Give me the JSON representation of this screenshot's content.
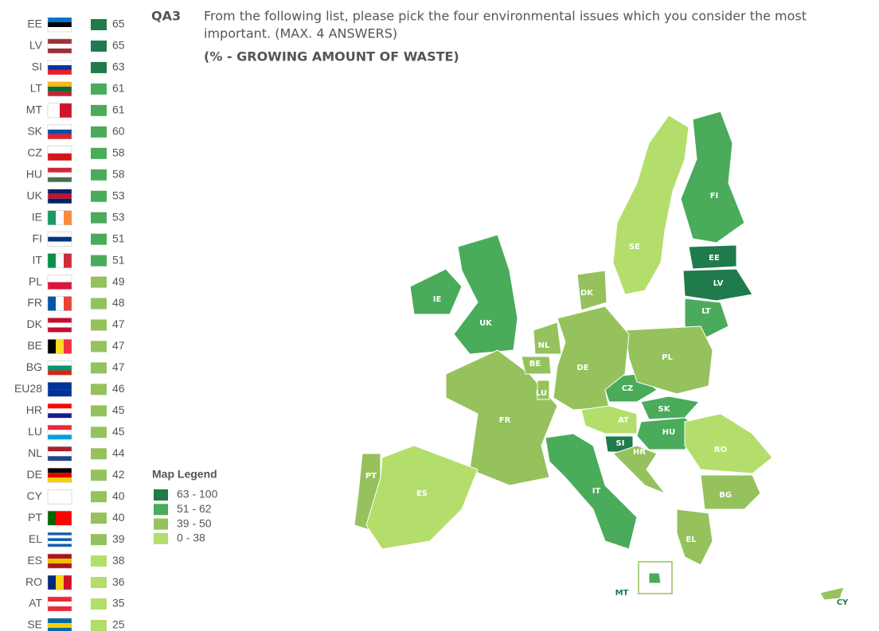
{
  "question": {
    "code": "QA3",
    "text_line1": "From the following list, please pick the four environmental issues which you consider the most",
    "text_line2": "important. (MAX. 4 ANSWERS)",
    "subtitle": "(% - GROWING AMOUNT OF WASTE)"
  },
  "countries": [
    {
      "code": "EE",
      "value": 65
    },
    {
      "code": "LV",
      "value": 65
    },
    {
      "code": "SI",
      "value": 63
    },
    {
      "code": "LT",
      "value": 61
    },
    {
      "code": "MT",
      "value": 61
    },
    {
      "code": "SK",
      "value": 60
    },
    {
      "code": "CZ",
      "value": 58
    },
    {
      "code": "HU",
      "value": 58
    },
    {
      "code": "UK",
      "value": 53
    },
    {
      "code": "IE",
      "value": 53
    },
    {
      "code": "FI",
      "value": 51
    },
    {
      "code": "IT",
      "value": 51
    },
    {
      "code": "PL",
      "value": 49
    },
    {
      "code": "FR",
      "value": 48
    },
    {
      "code": "DK",
      "value": 47
    },
    {
      "code": "BE",
      "value": 47
    },
    {
      "code": "BG",
      "value": 47
    },
    {
      "code": "EU28",
      "value": 46
    },
    {
      "code": "HR",
      "value": 45
    },
    {
      "code": "LU",
      "value": 45
    },
    {
      "code": "NL",
      "value": 44
    },
    {
      "code": "DE",
      "value": 42
    },
    {
      "code": "CY",
      "value": 40
    },
    {
      "code": "PT",
      "value": 40
    },
    {
      "code": "EL",
      "value": 39
    },
    {
      "code": "ES",
      "value": 38
    },
    {
      "code": "RO",
      "value": 36
    },
    {
      "code": "AT",
      "value": 35
    },
    {
      "code": "SE",
      "value": 25
    }
  ],
  "legend": {
    "title": "Map Legend",
    "classes": [
      {
        "label": "63 - 100",
        "min": 63,
        "max": 100,
        "color": "#1f7a4c"
      },
      {
        "label": "51 - 62",
        "min": 51,
        "max": 62,
        "color": "#4aab5b"
      },
      {
        "label": "39 - 50",
        "min": 39,
        "max": 50,
        "color": "#95c25c"
      },
      {
        "label": "0 - 38",
        "min": 0,
        "max": 38,
        "color": "#b3de6b"
      }
    ]
  }
}
